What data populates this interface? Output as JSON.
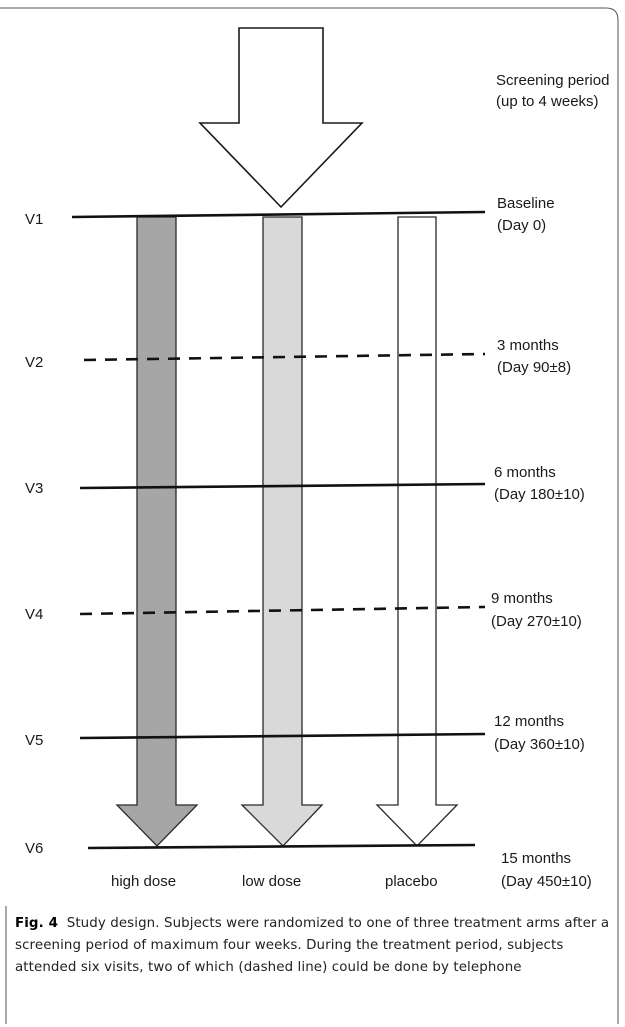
{
  "screening": {
    "line1": "Screening period",
    "line2": "(up to 4 weeks)"
  },
  "visits": [
    {
      "id": "V1",
      "time": "Baseline",
      "day": "(Day 0)",
      "style": "solid"
    },
    {
      "id": "V2",
      "time": "3 months",
      "day": "(Day 90±8)",
      "style": "dashed"
    },
    {
      "id": "V3",
      "time": "6 months",
      "day": "(Day 180±10)",
      "style": "solid"
    },
    {
      "id": "V4",
      "time": "9 months",
      "day": "(Day 270±10)",
      "style": "dashed"
    },
    {
      "id": "V5",
      "time": "12 months",
      "day": "(Day 360±10)",
      "style": "solid"
    },
    {
      "id": "V6",
      "time": "15 months",
      "day": "(Day 450±10)",
      "style": "solid"
    }
  ],
  "arms": [
    {
      "label": "high dose",
      "fill": "#a6a6a6"
    },
    {
      "label": "low dose",
      "fill": "#d9d9d9"
    },
    {
      "label": "placebo",
      "fill": "#ffffff"
    }
  ],
  "caption": {
    "fig_label": "Fig. 4",
    "text": "Study design. Subjects were randomized to one of three treatment arms after a screening period of maximum four weeks. During the treatment period, subjects attended six visits, two of which (dashed line) could be done by telephone"
  }
}
